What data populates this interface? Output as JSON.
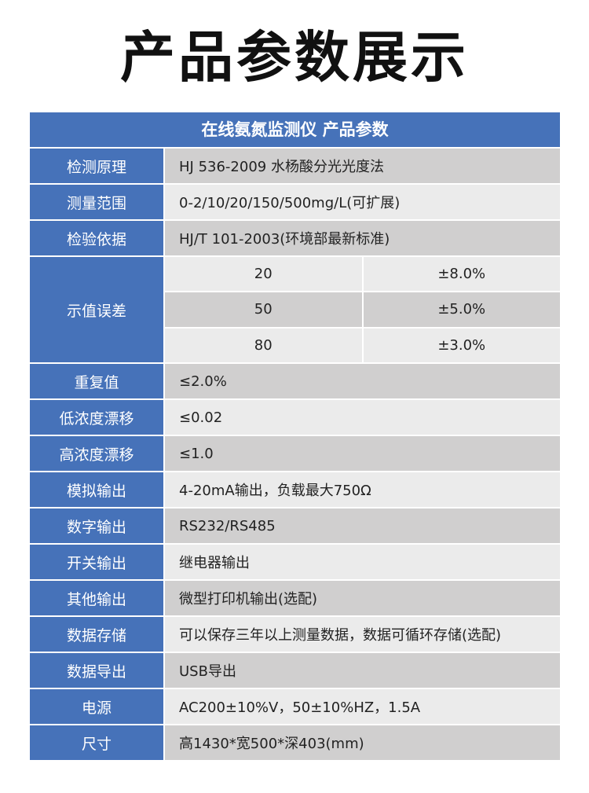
{
  "title": "产品参数展示",
  "table": {
    "header": "在线氨氮监测仪  产品参数",
    "rows_before": [
      {
        "label": "检测原理",
        "value": "HJ 536-2009 水杨酸分光光度法"
      },
      {
        "label": "测量范围",
        "value": "0-2/10/20/150/500mg/L(可扩展)"
      },
      {
        "label": "检验依据",
        "value": "HJ/T 101-2003(环境部最新标准)"
      }
    ],
    "error": {
      "label": "示值误差",
      "items": [
        {
          "value": "20",
          "error": "±8.0%"
        },
        {
          "value": "50",
          "error": "±5.0%"
        },
        {
          "value": "80",
          "error": "±3.0%"
        }
      ]
    },
    "rows_after": [
      {
        "label": "重复值",
        "value": "≤2.0%"
      },
      {
        "label": "低浓度漂移",
        "value": "≤0.02"
      },
      {
        "label": "高浓度漂移",
        "value": "≤1.0"
      },
      {
        "label": "模拟输出",
        "value": "4-20mA输出，负载最大750Ω"
      },
      {
        "label": "数字输出",
        "value": "RS232/RS485"
      },
      {
        "label": "开关输出",
        "value": "继电器输出"
      },
      {
        "label": "其他输出",
        "value": "微型打印机输出(选配)"
      },
      {
        "label": "数据存储",
        "value": "可以保存三年以上测量数据，数据可循环存储(选配)"
      },
      {
        "label": "数据导出",
        "value": "USB导出"
      },
      {
        "label": "电源",
        "value": "AC200±10%V，50±10%HZ，1.5A"
      },
      {
        "label": "尺寸",
        "value": "高1430*宽500*深403(mm)"
      }
    ]
  },
  "colors": {
    "header": "#4672b9",
    "row_dark": "#d0cfcf",
    "row_light": "#ebebeb"
  }
}
